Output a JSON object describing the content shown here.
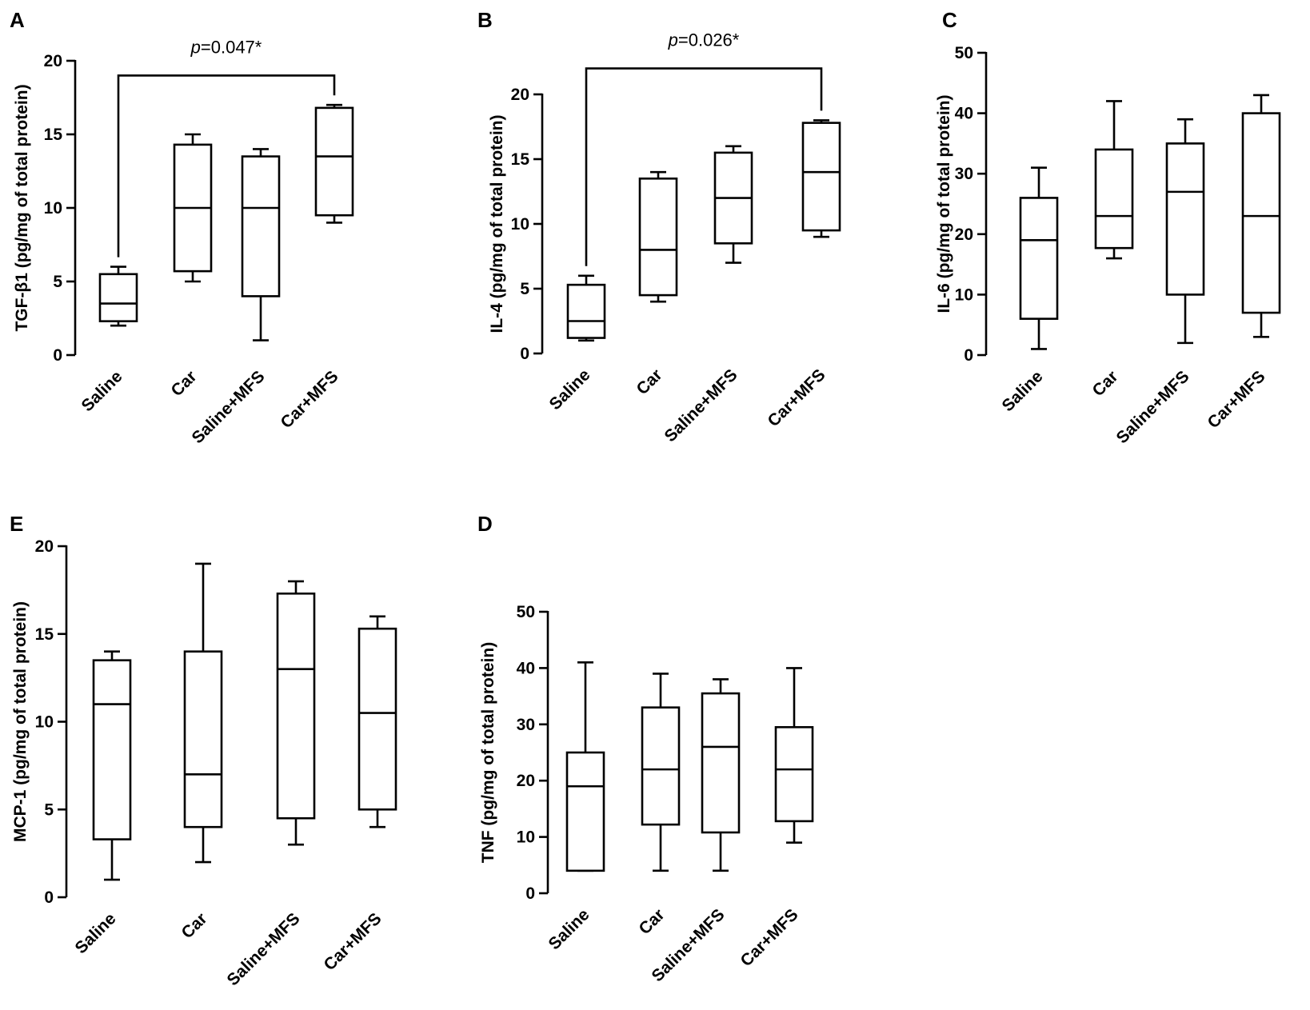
{
  "chart_data": [
    {
      "id": "A",
      "letter": "A",
      "type": "boxplot",
      "ylabel": "TGF-β1 (pg/mg of total protein)",
      "ylim": [
        0,
        20
      ],
      "ticks": [
        0,
        5,
        10,
        15,
        20
      ],
      "categories": [
        "Saline",
        "Car",
        "Saline+MFS",
        "Car+MFS"
      ],
      "boxes": [
        {
          "min": 2,
          "q1": 2.3,
          "median": 3.5,
          "q3": 5.5,
          "max": 6
        },
        {
          "min": 5,
          "q1": 5.7,
          "median": 10,
          "q3": 14.3,
          "max": 15
        },
        {
          "min": 1,
          "q1": 4,
          "median": 10,
          "q3": 13.5,
          "max": 14
        },
        {
          "min": 9,
          "q1": 9.5,
          "median": 13.5,
          "q3": 16.8,
          "max": 17
        }
      ],
      "significance": {
        "from": 0,
        "to": 3,
        "level": 19,
        "p_italic": "p",
        "p_rest": "=0.047*"
      }
    },
    {
      "id": "B",
      "letter": "B",
      "type": "boxplot",
      "ylabel": "IL-4 (pg/mg of total protein)",
      "ylim": [
        0,
        20
      ],
      "ticks": [
        0,
        5,
        10,
        15,
        20
      ],
      "categories": [
        "Saline",
        "Car",
        "Saline+MFS",
        "Car+MFS"
      ],
      "boxes": [
        {
          "min": 1,
          "q1": 1.2,
          "median": 2.5,
          "q3": 5.3,
          "max": 6
        },
        {
          "min": 4,
          "q1": 4.5,
          "median": 8,
          "q3": 13.5,
          "max": 14
        },
        {
          "min": 7,
          "q1": 8.5,
          "median": 12,
          "q3": 15.5,
          "max": 16
        },
        {
          "min": 9,
          "q1": 9.5,
          "median": 14,
          "q3": 17.8,
          "max": 18
        }
      ],
      "significance": {
        "from": 0,
        "to": 3,
        "level": 22,
        "p_italic": "p",
        "p_rest": "=0.026*"
      }
    },
    {
      "id": "C",
      "letter": "C",
      "type": "boxplot",
      "ylabel": "IL-6 (pg/mg of total protein)",
      "ylim": [
        0,
        50
      ],
      "ticks": [
        0,
        10,
        20,
        30,
        40,
        50
      ],
      "categories": [
        "Saline",
        "Car",
        "Saline+MFS",
        "Car+MFS"
      ],
      "boxes": [
        {
          "min": 1,
          "q1": 6,
          "median": 19,
          "q3": 26,
          "max": 31
        },
        {
          "min": 16,
          "q1": 17.7,
          "median": 23,
          "q3": 34,
          "max": 42
        },
        {
          "min": 2,
          "q1": 10,
          "median": 27,
          "q3": 35,
          "max": 39
        },
        {
          "min": 3,
          "q1": 7,
          "median": 23,
          "q3": 40,
          "max": 43
        }
      ]
    },
    {
      "id": "E",
      "letter": "E",
      "type": "boxplot",
      "ylabel": "MCP-1 (pg/mg of total protein)",
      "ylim": [
        0,
        20
      ],
      "ticks": [
        0,
        5,
        10,
        15,
        20
      ],
      "categories": [
        "Saline",
        "Car",
        "Saline+MFS",
        "Car+MFS"
      ],
      "boxes": [
        {
          "min": 1,
          "q1": 3.3,
          "median": 11,
          "q3": 13.5,
          "max": 14
        },
        {
          "min": 2,
          "q1": 4,
          "median": 7,
          "q3": 14,
          "max": 19
        },
        {
          "min": 3,
          "q1": 4.5,
          "median": 13,
          "q3": 17.3,
          "max": 18
        },
        {
          "min": 4,
          "q1": 5,
          "median": 10.5,
          "q3": 15.3,
          "max": 16
        }
      ]
    },
    {
      "id": "D",
      "letter": "D",
      "type": "boxplot",
      "ylabel": "TNF (pg/mg of total protein)",
      "ylim": [
        0,
        50
      ],
      "ticks": [
        0,
        10,
        20,
        30,
        40,
        50
      ],
      "categories": [
        "Saline",
        "Car",
        "Saline+MFS",
        "Car+MFS"
      ],
      "boxes": [
        {
          "min": 4,
          "q1": 4,
          "median": 19,
          "q3": 25,
          "max": 41
        },
        {
          "min": 4,
          "q1": 12.2,
          "median": 22,
          "q3": 33,
          "max": 39
        },
        {
          "min": 4,
          "q1": 10.8,
          "median": 26,
          "q3": 35.5,
          "max": 38
        },
        {
          "min": 9,
          "q1": 12.8,
          "median": 22,
          "q3": 29.5,
          "max": 40
        }
      ]
    }
  ]
}
